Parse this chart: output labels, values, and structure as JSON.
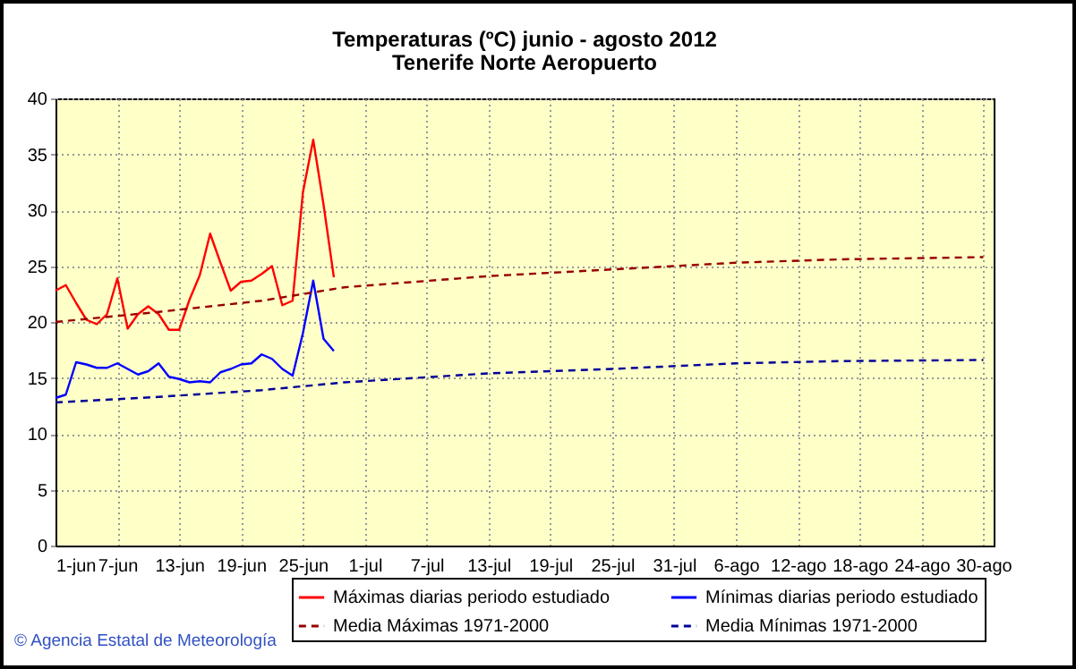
{
  "chart_data": {
    "type": "line",
    "title": "Temperaturas (ºC) junio - agosto 2012",
    "subtitle": "Tenerife Norte Aeropuerto",
    "annotations": [
      "© Agencia Estatal de Meteorología"
    ],
    "xlim": [
      "2012-06-01",
      "2012-08-31"
    ],
    "xticks": [
      {
        "value": "2012-06-01",
        "label": "1-jun"
      },
      {
        "value": "2012-06-07",
        "label": "7-jun"
      },
      {
        "value": "2012-06-13",
        "label": "13-jun"
      },
      {
        "value": "2012-06-19",
        "label": "19-jun"
      },
      {
        "value": "2012-06-25",
        "label": "25-jun"
      },
      {
        "value": "2012-07-01",
        "label": "1-jul"
      },
      {
        "value": "2012-07-07",
        "label": "7-jul"
      },
      {
        "value": "2012-07-13",
        "label": "13-jul"
      },
      {
        "value": "2012-07-19",
        "label": "19-jul"
      },
      {
        "value": "2012-07-25",
        "label": "25-jul"
      },
      {
        "value": "2012-07-31",
        "label": "31-jul"
      },
      {
        "value": "2012-08-06",
        "label": "6-ago"
      },
      {
        "value": "2012-08-12",
        "label": "12-ago"
      },
      {
        "value": "2012-08-18",
        "label": "18-ago"
      },
      {
        "value": "2012-08-24",
        "label": "24-ago"
      },
      {
        "value": "2012-08-30",
        "label": "30-ago"
      }
    ],
    "ylim": [
      0,
      40
    ],
    "yticks": [
      0,
      5,
      10,
      15,
      20,
      25,
      30,
      35,
      40
    ],
    "grid": true,
    "legend": "bottom",
    "marker": "none",
    "series": [
      {
        "name": "Máximas diarias periodo estudiado",
        "color": "#ff0000",
        "line_style": "solid",
        "x": [
          "2012-06-01",
          "2012-06-02",
          "2012-06-03",
          "2012-06-04",
          "2012-06-05",
          "2012-06-06",
          "2012-06-07",
          "2012-06-08",
          "2012-06-09",
          "2012-06-10",
          "2012-06-11",
          "2012-06-12",
          "2012-06-13",
          "2012-06-14",
          "2012-06-15",
          "2012-06-16",
          "2012-06-17",
          "2012-06-18",
          "2012-06-19",
          "2012-06-20",
          "2012-06-21",
          "2012-06-22",
          "2012-06-23",
          "2012-06-24",
          "2012-06-25",
          "2012-06-26",
          "2012-06-27",
          "2012-06-28"
        ],
        "values": [
          22.8,
          23.3,
          21.7,
          20.2,
          19.8,
          20.7,
          23.9,
          19.4,
          20.7,
          21.4,
          20.7,
          19.3,
          19.3,
          22.0,
          24.2,
          27.9,
          25.3,
          22.8,
          23.6,
          23.7,
          24.3,
          25.0,
          21.5,
          21.9,
          31.6,
          36.3,
          30.5,
          24.0
        ]
      },
      {
        "name": "Mínimas diarias periodo estudiado",
        "color": "#0000ff",
        "line_style": "solid",
        "x": [
          "2012-06-01",
          "2012-06-02",
          "2012-06-03",
          "2012-06-04",
          "2012-06-05",
          "2012-06-06",
          "2012-06-07",
          "2012-06-08",
          "2012-06-09",
          "2012-06-10",
          "2012-06-11",
          "2012-06-12",
          "2012-06-13",
          "2012-06-14",
          "2012-06-15",
          "2012-06-16",
          "2012-06-17",
          "2012-06-18",
          "2012-06-19",
          "2012-06-20",
          "2012-06-21",
          "2012-06-22",
          "2012-06-23",
          "2012-06-24",
          "2012-06-25",
          "2012-06-26",
          "2012-06-27",
          "2012-06-28"
        ],
        "values": [
          13.2,
          13.5,
          16.4,
          16.2,
          15.9,
          15.9,
          16.3,
          15.8,
          15.3,
          15.6,
          16.3,
          15.1,
          14.9,
          14.6,
          14.7,
          14.6,
          15.5,
          15.8,
          16.2,
          16.3,
          17.1,
          16.7,
          15.8,
          15.2,
          19.0,
          23.7,
          18.5,
          17.4
        ]
      },
      {
        "name": "Media Máximas 1971-2000",
        "color": "#990000",
        "line_style": "dashed",
        "x": [
          "2012-06-01",
          "2012-06-11",
          "2012-06-21",
          "2012-06-29",
          "2012-07-13",
          "2012-07-25",
          "2012-08-06",
          "2012-08-16",
          "2012-08-30"
        ],
        "values": [
          20.0,
          20.9,
          21.9,
          23.1,
          24.1,
          24.7,
          25.3,
          25.6,
          25.8
        ]
      },
      {
        "name": "Media Mínimas 1971-2000",
        "color": "#000099",
        "line_style": "dashed",
        "x": [
          "2012-06-01",
          "2012-06-11",
          "2012-06-21",
          "2012-06-29",
          "2012-07-13",
          "2012-07-25",
          "2012-08-06",
          "2012-08-16",
          "2012-08-30"
        ],
        "values": [
          12.8,
          13.3,
          13.9,
          14.6,
          15.4,
          15.8,
          16.3,
          16.5,
          16.6
        ]
      }
    ]
  }
}
